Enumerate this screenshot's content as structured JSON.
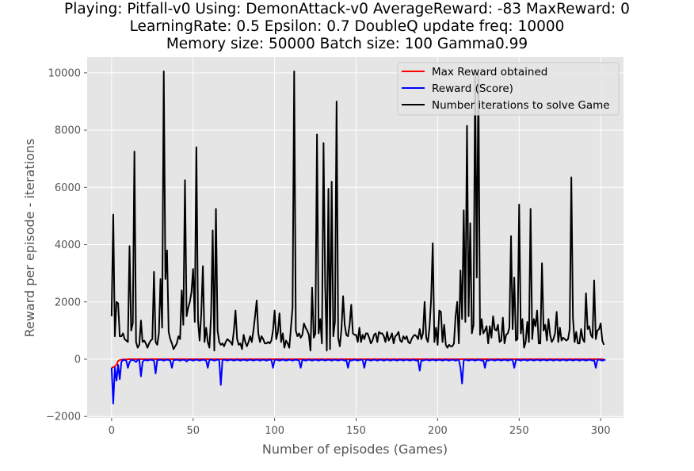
{
  "title_lines": [
    "Playing: Pitfall-v0 Using: DemonAttack-v0 AverageReward: -83 MaxReward: 0",
    "LearningRate: 0.5 Epsilon: 0.7 DoubleQ update freq: 10000",
    "Memory size: 50000 Batch size: 100 Gamma0.99"
  ],
  "chart_data": {
    "type": "line",
    "title": "Playing: Pitfall-v0 Using: DemonAttack-v0 AverageReward: -83 MaxReward: 0 LearningRate: 0.5 Epsilon: 0.7 DoubleQ update freq: 10000 Memory size: 50000 Batch size: 100 Gamma0.99",
    "xlabel": "Number of episodes (Games)",
    "ylabel": "Reward per episode - iterations",
    "xlim": [
      -15,
      314
    ],
    "ylim": [
      -2050,
      10550
    ],
    "xticks": [
      0,
      50,
      100,
      150,
      200,
      250,
      300
    ],
    "yticks": [
      -2000,
      0,
      2000,
      4000,
      6000,
      8000,
      10000
    ],
    "xtick_labels": [
      "0",
      "50",
      "100",
      "150",
      "200",
      "250",
      "300"
    ],
    "ytick_labels": [
      "−2000",
      "0",
      "2000",
      "4000",
      "6000",
      "8000",
      "10000"
    ],
    "grid": true,
    "legend_position": "top-right",
    "series": [
      {
        "name": "Max Reward obtained",
        "color": "#ff0000",
        "x_start": 0,
        "values": [
          -300,
          -280,
          -250,
          -200,
          -60,
          -30,
          -20,
          -10,
          -10,
          -10,
          0,
          0,
          0,
          0,
          0,
          0,
          0,
          0,
          0,
          0,
          0,
          0,
          0,
          0,
          0,
          0,
          0,
          0,
          0,
          0,
          0,
          0,
          0,
          0,
          0,
          0,
          0,
          0,
          0,
          0,
          0,
          0,
          0,
          0,
          0,
          0,
          0,
          0,
          0,
          0,
          0,
          0,
          0,
          0,
          0,
          0,
          0,
          0,
          0,
          0,
          0,
          0,
          0,
          0,
          0,
          0,
          0,
          0,
          0,
          0,
          0,
          0,
          0,
          0,
          0,
          0,
          0,
          0,
          0,
          0,
          0,
          0,
          0,
          0,
          0,
          0,
          0,
          0,
          0,
          0,
          0,
          0,
          0,
          0,
          0,
          0,
          0,
          0,
          0,
          0,
          0,
          0,
          0,
          0,
          0,
          0,
          0,
          0,
          0,
          0,
          0,
          0,
          0,
          0,
          0,
          0,
          0,
          0,
          0,
          0,
          0,
          0,
          0,
          0,
          0,
          0,
          0,
          0,
          0,
          0,
          0,
          0,
          0,
          0,
          0,
          0,
          0,
          0,
          0,
          0,
          0,
          0,
          0,
          0,
          0,
          0,
          0,
          0,
          0,
          0,
          0,
          0,
          0,
          0,
          0,
          0,
          0,
          0,
          0,
          0,
          0,
          0,
          0,
          0,
          0,
          0,
          0,
          0,
          0,
          0,
          0,
          0,
          0,
          0,
          0,
          0,
          0,
          0,
          0,
          0,
          0,
          0,
          0,
          0,
          0,
          0,
          0,
          0,
          0,
          0,
          0,
          0,
          0,
          0,
          0,
          0,
          0,
          0,
          0,
          0,
          0,
          0,
          0,
          0,
          0,
          0,
          0,
          0,
          0,
          0,
          0,
          0,
          0,
          0,
          0,
          0,
          0,
          0,
          0,
          0,
          0,
          0,
          0,
          0,
          0,
          0,
          0,
          0,
          0,
          0,
          0,
          0,
          0,
          0,
          0,
          0,
          0,
          0,
          0,
          0,
          0,
          0,
          0,
          0,
          0,
          0,
          0,
          0,
          0,
          0,
          0,
          0,
          0,
          0,
          0,
          0,
          0,
          0,
          0,
          0,
          0,
          0,
          0,
          0,
          0,
          0,
          0,
          0,
          0,
          0,
          0,
          0,
          0,
          0,
          0,
          0,
          0,
          0,
          0,
          0,
          0,
          0,
          0,
          0,
          0,
          0,
          0,
          0,
          0,
          0,
          0,
          0,
          0,
          0,
          0,
          0,
          0,
          0,
          0,
          0,
          0,
          0,
          0
        ]
      },
      {
        "name": "Reward (Score)",
        "color": "#0000ff",
        "x_start": 0,
        "values": [
          -300,
          -1550,
          -300,
          -750,
          -200,
          -700,
          -100,
          -30,
          -30,
          -50,
          -300,
          -100,
          -30,
          -30,
          -50,
          -100,
          -30,
          -20,
          -600,
          -100,
          -30,
          -30,
          -50,
          -30,
          -20,
          -30,
          -50,
          -500,
          -30,
          -30,
          -20,
          -30,
          -50,
          -30,
          -20,
          -30,
          -50,
          -300,
          -30,
          -30,
          -20,
          -30,
          -50,
          -30,
          -20,
          -30,
          -80,
          -30,
          -20,
          -30,
          -50,
          -30,
          -20,
          -30,
          -50,
          -30,
          -20,
          -30,
          -50,
          -300,
          -30,
          -20,
          -30,
          -50,
          -30,
          -20,
          -30,
          -900,
          -30,
          -20,
          -30,
          -50,
          -30,
          -20,
          -30,
          -50,
          -30,
          -20,
          -30,
          -50,
          -30,
          -20,
          -30,
          -50,
          -30,
          -20,
          -30,
          -50,
          -30,
          -20,
          -30,
          -50,
          -30,
          -20,
          -30,
          -50,
          -30,
          -20,
          -30,
          -300,
          -30,
          -20,
          -30,
          -50,
          -30,
          -20,
          -30,
          -50,
          -30,
          -20,
          -30,
          -50,
          -30,
          -20,
          -30,
          -50,
          -300,
          -20,
          -30,
          -50,
          -30,
          -20,
          -30,
          -50,
          -30,
          -20,
          -30,
          -50,
          -30,
          -20,
          -30,
          -50,
          -30,
          -20,
          -30,
          -50,
          -30,
          -20,
          -30,
          -50,
          -30,
          -20,
          -30,
          -50,
          -30,
          -300,
          -30,
          -50,
          -30,
          -20,
          -30,
          -50,
          -30,
          -20,
          -30,
          -300,
          -30,
          -20,
          -30,
          -50,
          -30,
          -20,
          -30,
          -50,
          -30,
          -20,
          -30,
          -50,
          -30,
          -20,
          -30,
          -50,
          -30,
          -20,
          -30,
          -50,
          -30,
          -20,
          -30,
          -50,
          -30,
          -20,
          -30,
          -50,
          -30,
          -20,
          -30,
          -50,
          -30,
          -400,
          -30,
          -50,
          -30,
          -20,
          -30,
          -50,
          -30,
          -20,
          -30,
          -50,
          -30,
          -20,
          -30,
          -50,
          -30,
          -20,
          -30,
          -50,
          -30,
          -20,
          -30,
          -50,
          -30,
          -20,
          -300,
          -850,
          -30,
          -20,
          -30,
          -50,
          -30,
          -20,
          -30,
          -50,
          -30,
          -20,
          -30,
          -50,
          -30,
          -300,
          -30,
          -50,
          -30,
          -20,
          -30,
          -50,
          -30,
          -20,
          -30,
          -50,
          -30,
          -20,
          -30,
          -50,
          -30,
          -20,
          -30,
          -300,
          -30,
          -20,
          -30,
          -50,
          -30,
          -20,
          -30,
          -50,
          -30,
          -20,
          -30,
          -50,
          -30,
          -20,
          -30,
          -50,
          -30,
          -20,
          -30,
          -50,
          -30,
          -20,
          -30,
          -50,
          -30,
          -20,
          -30,
          -50,
          -30,
          -20,
          -30,
          -50,
          -30,
          -20,
          -30,
          -50,
          -30,
          -20,
          -30,
          -50,
          -30,
          -20,
          -30,
          -50,
          -30,
          -20,
          -30,
          -50,
          -30,
          -300,
          -30,
          -20,
          -30,
          -50,
          -30,
          -20
        ]
      },
      {
        "name": "Number iterations to solve Game",
        "color": "#000000",
        "x_start": 0,
        "values": [
          1500,
          5050,
          800,
          2000,
          1950,
          800,
          800,
          900,
          700,
          650,
          600,
          3950,
          1000,
          1250,
          7250,
          600,
          400,
          500,
          1350,
          600,
          650,
          550,
          400,
          550,
          650,
          700,
          3050,
          600,
          500,
          900,
          2800,
          1100,
          10050,
          2800,
          3800,
          950,
          700,
          550,
          350,
          450,
          550,
          800,
          700,
          2400,
          1200,
          6250,
          1500,
          1800,
          2000,
          2350,
          3150,
          1300,
          7400,
          1350,
          650,
          1600,
          3250,
          600,
          1100,
          600,
          400,
          1500,
          4500,
          300,
          5250,
          1000,
          600,
          500,
          550,
          450,
          600,
          700,
          650,
          600,
          500,
          1000,
          1700,
          700,
          500,
          550,
          350,
          850,
          600,
          450,
          600,
          800,
          600,
          1000,
          1500,
          2050,
          900,
          600,
          800,
          700,
          550,
          550,
          600,
          550,
          650,
          1000,
          1700,
          700,
          950,
          1600,
          600,
          900,
          400,
          650,
          550,
          400,
          1100,
          1800,
          10050,
          1000,
          800,
          900,
          750,
          850,
          1250,
          1100,
          1000,
          850,
          300,
          2500,
          750,
          900,
          7850,
          900,
          1400,
          550,
          7550,
          2600,
          300,
          5950,
          350,
          6200,
          800,
          1300,
          9000,
          750,
          450,
          1050,
          2200,
          1200,
          850,
          800,
          1200,
          1900,
          900,
          850,
          850,
          600,
          1100,
          600,
          850,
          700,
          900,
          900,
          750,
          550,
          650,
          850,
          900,
          600,
          950,
          900,
          900,
          800,
          600,
          950,
          650,
          750,
          900,
          550,
          800,
          850,
          950,
          650,
          600,
          800,
          700,
          800,
          600,
          550,
          700,
          800,
          850,
          800,
          700,
          1050,
          700,
          900,
          2000,
          750,
          600,
          1100,
          2100,
          4050,
          600,
          1100,
          500,
          1700,
          1650,
          600,
          1200,
          500,
          400,
          500,
          450,
          450,
          550,
          1500,
          2000,
          550,
          3100,
          1400,
          5200,
          1300,
          8150,
          1500,
          4750,
          900,
          1200,
          9950,
          2850,
          9950,
          850,
          1400,
          900,
          1000,
          1150,
          550,
          1150,
          750,
          1500,
          1050,
          1000,
          1200,
          600,
          650,
          1450,
          550,
          850,
          900,
          1100,
          4300,
          1050,
          2850,
          650,
          700,
          5400,
          900,
          1400,
          400,
          600,
          1300,
          600,
          5250,
          700,
          1400,
          1150,
          1700,
          550,
          550,
          3350,
          1000,
          1200,
          650,
          1400,
          850,
          600,
          700,
          900,
          1650,
          600,
          1100,
          650,
          750,
          700,
          650,
          700,
          1050,
          6350,
          1450,
          600,
          950,
          550,
          550,
          1050,
          700,
          600,
          2300,
          1050,
          1150,
          850,
          750,
          2750,
          700,
          1000,
          1050,
          1250,
          650,
          500
        ]
      }
    ]
  }
}
